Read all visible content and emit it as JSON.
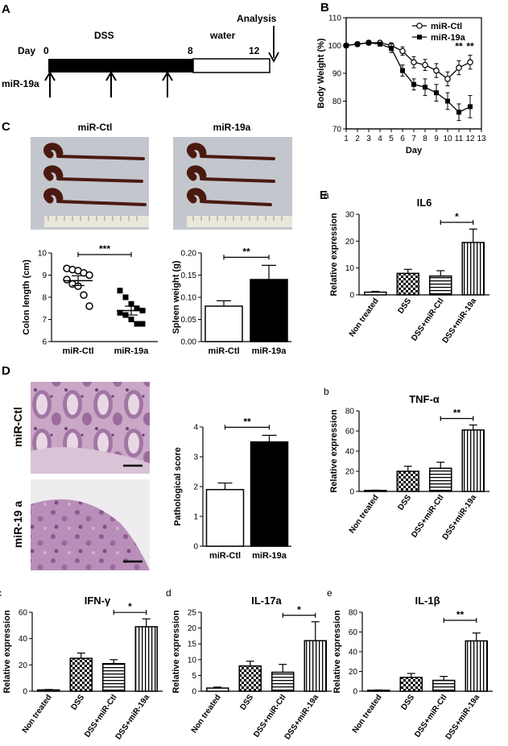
{
  "panels": {
    "A": {
      "letter": "A",
      "day_label": "Day",
      "day_ticks": [
        "0",
        "8",
        "12"
      ],
      "dss_label": "DSS",
      "water_label": "water",
      "analysis_label": "Analysis",
      "treatment_label": "miR-19a"
    },
    "C": {
      "letter": "C",
      "photo_labels": [
        "miR-Ctl",
        "miR-19a"
      ]
    },
    "D": {
      "letter": "D",
      "histology_labels": [
        "miR-Ctl",
        "miR-19 a"
      ]
    },
    "E": {
      "letter": "E"
    }
  },
  "colors": {
    "ctl_fill": "#ffffff",
    "mir_fill": "#000000",
    "grid_axis": "#000000"
  },
  "chart_data": [
    {
      "id": "body-weight",
      "panel": "B",
      "type": "line",
      "xlabel": "Day",
      "ylabel": "Body Weight (%)",
      "xlim": [
        1,
        13
      ],
      "ylim": [
        70,
        110
      ],
      "xticks": [
        1,
        2,
        3,
        4,
        5,
        6,
        7,
        8,
        9,
        10,
        11,
        12,
        13
      ],
      "yticks": [
        70,
        80,
        90,
        100,
        110
      ],
      "legend": "top-right",
      "significance": [
        "**",
        "**"
      ],
      "x": [
        1,
        2,
        3,
        4,
        5,
        6,
        7,
        8,
        9,
        10,
        11,
        12
      ],
      "series": [
        {
          "name": "miR-Ctl",
          "marker": "open-circle",
          "values": [
            100,
            100.5,
            101,
            101,
            100,
            98,
            94,
            93,
            91,
            88,
            92,
            94
          ],
          "errors": [
            0.5,
            0.5,
            0.5,
            0.6,
            1,
            1.5,
            2,
            2,
            2.5,
            2.5,
            2.5,
            2.5
          ]
        },
        {
          "name": "miR-19a",
          "marker": "filled-square",
          "values": [
            100,
            100.5,
            101,
            100.5,
            99,
            91,
            86,
            85,
            83,
            80,
            76,
            78
          ],
          "errors": [
            0.5,
            0.5,
            0.5,
            0.6,
            1.5,
            2,
            2,
            3,
            3,
            3,
            3,
            4
          ]
        }
      ]
    },
    {
      "id": "colon-length",
      "panel": "C",
      "type": "scatter",
      "ylabel": "Colon length (cm)",
      "ylim": [
        6,
        10
      ],
      "yticks": [
        6,
        7,
        8,
        9,
        10
      ],
      "categories": [
        "miR-Ctl",
        "miR-19a"
      ],
      "significance": "***",
      "groups": [
        {
          "name": "miR-Ctl",
          "marker": "open-circle",
          "mean": 8.75,
          "sem": 0.22,
          "points": [
            9.3,
            9.25,
            9.2,
            9.1,
            9.0,
            8.8,
            8.6,
            8.5,
            8.1,
            7.6
          ]
        },
        {
          "name": "miR-19a",
          "marker": "filled-square",
          "mean": 7.4,
          "sem": 0.2,
          "points": [
            8.3,
            8.0,
            7.7,
            7.5,
            7.4,
            7.3,
            7.2,
            7.0,
            6.8,
            6.8
          ]
        }
      ]
    },
    {
      "id": "spleen-weight",
      "panel": "C",
      "type": "bar",
      "ylabel": "Spleen weight (g)",
      "ylim": [
        0,
        0.2
      ],
      "yticks": [
        "0.00",
        "0.05",
        "0.10",
        "0.15",
        "0.20"
      ],
      "categories": [
        "miR-Ctl",
        "miR-19a"
      ],
      "significance": "**",
      "values": [
        0.08,
        0.14
      ],
      "errors": [
        0.012,
        0.032
      ],
      "fills": [
        "open",
        "black"
      ]
    },
    {
      "id": "pathological-score",
      "panel": "D",
      "type": "bar",
      "ylabel": "Pathological score",
      "ylim": [
        0,
        4
      ],
      "yticks": [
        0,
        1,
        2,
        3,
        4
      ],
      "categories": [
        "miR-Ctl",
        "miR-19a"
      ],
      "significance": "**",
      "values": [
        1.9,
        3.5
      ],
      "errors": [
        0.22,
        0.22
      ],
      "fills": [
        "open",
        "black"
      ]
    },
    {
      "id": "il6",
      "panel": "E",
      "sub": "a",
      "type": "bar",
      "title": "IL6",
      "ylabel": "Relative expression",
      "ylim": [
        0,
        30
      ],
      "yticks": [
        0,
        10,
        20,
        30
      ],
      "categories": [
        "Non treated",
        "DSS",
        "DSS+miR-Ctl",
        "DSS+miR-19a"
      ],
      "values": [
        1,
        8,
        7,
        19.5
      ],
      "errors": [
        0.3,
        1.5,
        2,
        5
      ],
      "fills": [
        "open",
        "checker",
        "hstripe",
        "vstripe"
      ],
      "significance": "*"
    },
    {
      "id": "tnfa",
      "panel": "E",
      "sub": "b",
      "type": "bar",
      "title": "TNF-α",
      "ylabel": "Relative expression",
      "ylim": [
        0,
        80
      ],
      "yticks": [
        0,
        20,
        40,
        60,
        80
      ],
      "categories": [
        "Non treated",
        "DSS",
        "DSS+miR-Ctl",
        "DSS+miR-19a"
      ],
      "values": [
        1,
        20,
        23,
        61
      ],
      "errors": [
        0.3,
        5,
        6,
        5
      ],
      "fills": [
        "open",
        "checker",
        "hstripe",
        "vstripe"
      ],
      "significance": "**"
    },
    {
      "id": "ifng",
      "panel": "E",
      "sub": "c",
      "type": "bar",
      "title": "IFN-γ",
      "ylabel": "Relative expression",
      "ylim": [
        0,
        60
      ],
      "yticks": [
        0,
        20,
        40,
        60
      ],
      "categories": [
        "Non treated",
        "DSS",
        "DSS+miR-Ctl",
        "DSS+miR-19a"
      ],
      "values": [
        1,
        25,
        21,
        49
      ],
      "errors": [
        0.3,
        4,
        3,
        6
      ],
      "fills": [
        "open",
        "checker",
        "hstripe",
        "vstripe"
      ],
      "significance": "*"
    },
    {
      "id": "il17a",
      "panel": "E",
      "sub": "d",
      "type": "bar",
      "title": "IL-17a",
      "ylabel": "Relative expression",
      "ylim": [
        0,
        25
      ],
      "yticks": [
        0,
        5,
        10,
        15,
        20,
        25
      ],
      "categories": [
        "Non treated",
        "DSS",
        "DSS+miR-Ctl",
        "DSS+miR-19a"
      ],
      "values": [
        1,
        8,
        6,
        16
      ],
      "errors": [
        0.3,
        1.5,
        2.5,
        6
      ],
      "fills": [
        "open",
        "checker",
        "hstripe",
        "vstripe"
      ],
      "significance": "*"
    },
    {
      "id": "il1b",
      "panel": "E",
      "sub": "e",
      "type": "bar",
      "title": "IL-1β",
      "ylabel": "Relative expression",
      "ylim": [
        0,
        80
      ],
      "yticks": [
        0,
        20,
        40,
        60,
        80
      ],
      "categories": [
        "Non treated",
        "DSS",
        "DSS+miR-Ctl",
        "DSS+miR-19a"
      ],
      "values": [
        1,
        14,
        11,
        51
      ],
      "errors": [
        0.3,
        4,
        4,
        8
      ],
      "fills": [
        "open",
        "checker",
        "hstripe",
        "vstripe"
      ],
      "significance": "**"
    }
  ]
}
